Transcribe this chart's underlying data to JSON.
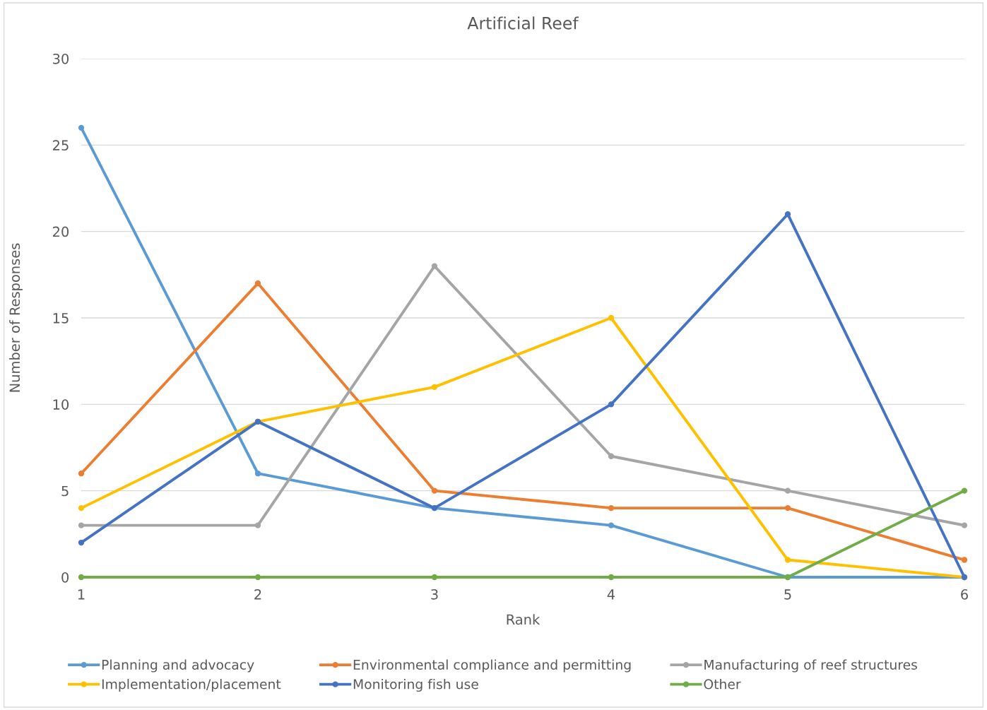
{
  "chart_data": {
    "type": "line",
    "title": "Artificial Reef",
    "xlabel": "Rank",
    "ylabel": "Number of Responses",
    "categories": [
      "1",
      "2",
      "3",
      "4",
      "5",
      "6"
    ],
    "series": [
      {
        "name": "Planning and advocacy",
        "color": "#5b9bd5",
        "values": [
          26,
          6,
          4,
          3,
          0,
          0
        ]
      },
      {
        "name": "Environmental compliance and permitting",
        "color": "#ed7d31",
        "values": [
          6,
          17,
          5,
          4,
          4,
          1
        ]
      },
      {
        "name": "Manufacturing of reef structures",
        "color": "#a5a5a5",
        "values": [
          3,
          3,
          18,
          7,
          5,
          3
        ]
      },
      {
        "name": "Implementation/placement",
        "color": "#ffc000",
        "values": [
          4,
          9,
          11,
          15,
          1,
          0
        ]
      },
      {
        "name": "Monitoring fish use",
        "color": "#4472c4",
        "values": [
          2,
          9,
          4,
          10,
          21,
          0
        ]
      },
      {
        "name": "Other",
        "color": "#70ad47",
        "values": [
          0,
          0,
          0,
          0,
          0,
          5
        ]
      }
    ],
    "ylim": [
      0,
      30
    ],
    "yticks": [
      0,
      5,
      10,
      15,
      20,
      25,
      30
    ],
    "grid": "y",
    "legend": "bottom",
    "marker": "circle",
    "line_style": "solid"
  }
}
